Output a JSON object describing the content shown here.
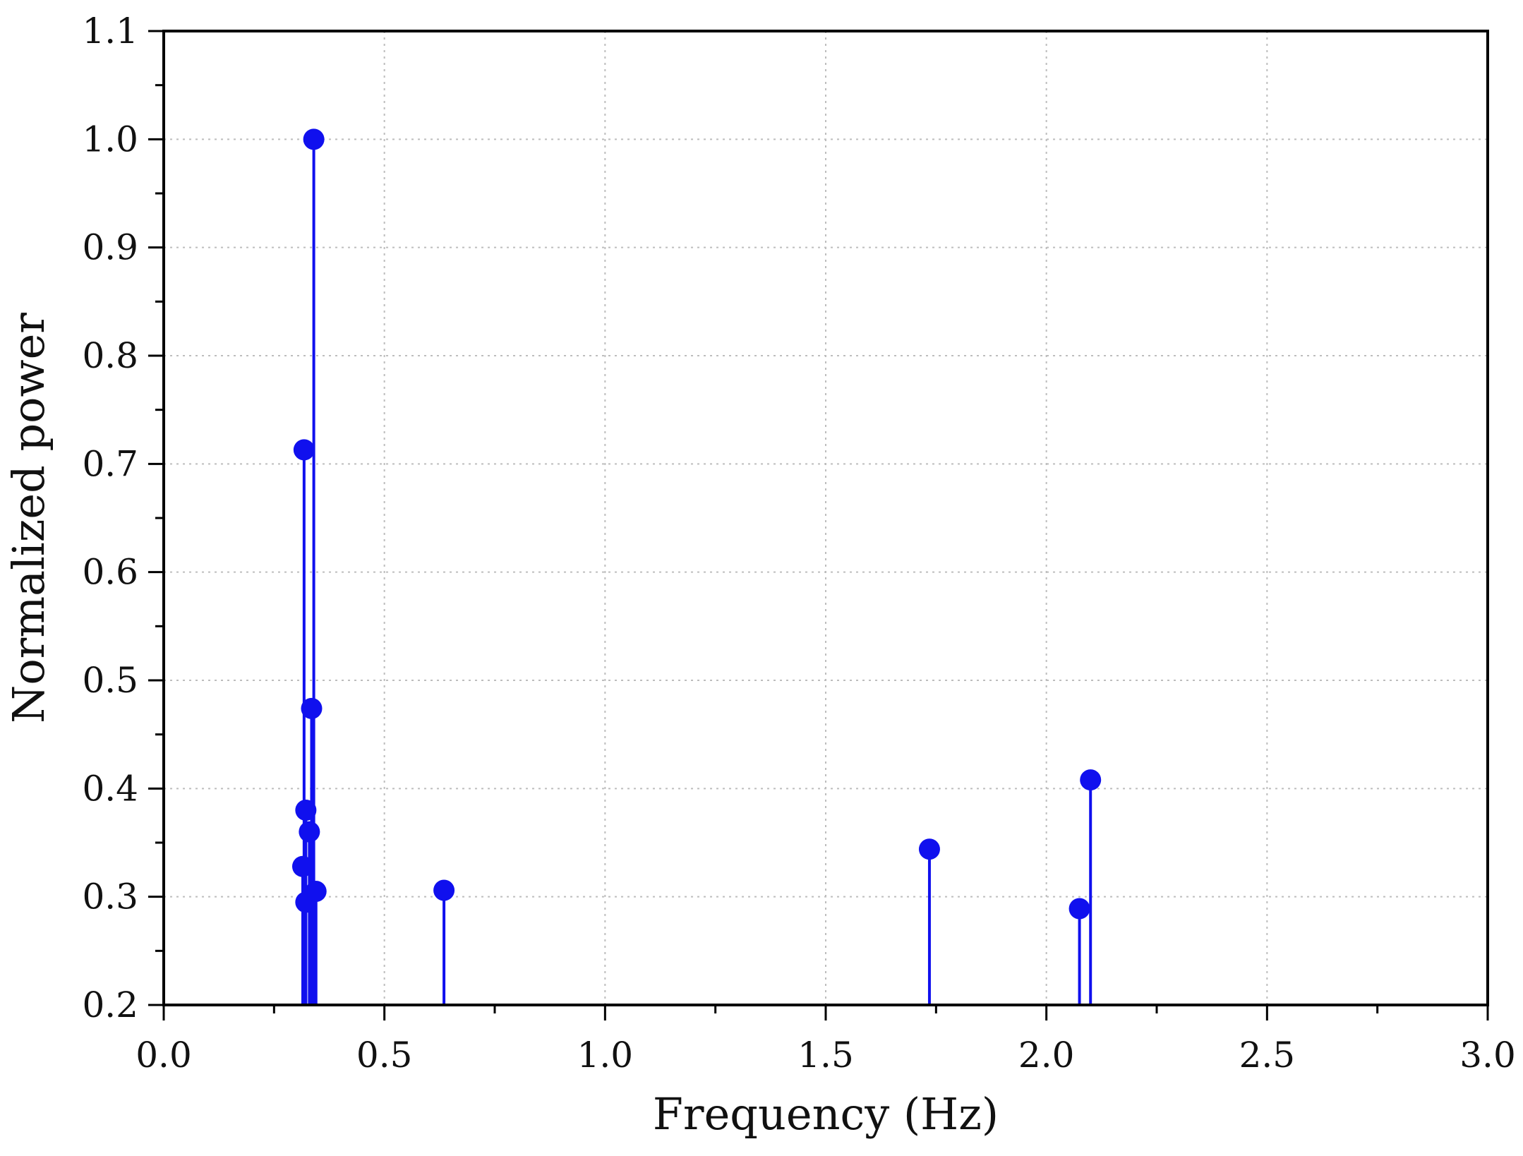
{
  "chart_data": {
    "type": "stem",
    "xlabel": "Frequency (Hz)",
    "ylabel": "Normalized power",
    "xlim": [
      0.0,
      3.0
    ],
    "ylim": [
      0.2,
      1.1
    ],
    "xticks": [
      0.0,
      0.5,
      1.0,
      1.5,
      2.0,
      2.5,
      3.0
    ],
    "xtick_labels": [
      "0.0",
      "0.5",
      "1.0",
      "1.5",
      "2.0",
      "2.5",
      "3.0"
    ],
    "yticks": [
      0.2,
      0.3,
      0.4,
      0.5,
      0.6,
      0.7,
      0.8,
      0.9,
      1.0,
      1.1
    ],
    "ytick_labels": [
      "0.2",
      "0.3",
      "0.4",
      "0.5",
      "0.6",
      "0.7",
      "0.8",
      "0.9",
      "1.0",
      "1.1"
    ],
    "grid": true,
    "baseline": 0.2,
    "color": "#1010ee",
    "points": [
      {
        "x": 0.315,
        "y": 0.328
      },
      {
        "x": 0.318,
        "y": 0.713
      },
      {
        "x": 0.322,
        "y": 0.38
      },
      {
        "x": 0.322,
        "y": 0.295
      },
      {
        "x": 0.33,
        "y": 0.36
      },
      {
        "x": 0.335,
        "y": 0.474
      },
      {
        "x": 0.34,
        "y": 1.0
      },
      {
        "x": 0.345,
        "y": 0.305
      },
      {
        "x": 0.635,
        "y": 0.306
      },
      {
        "x": 1.735,
        "y": 0.344
      },
      {
        "x": 2.075,
        "y": 0.289
      },
      {
        "x": 2.1,
        "y": 0.408
      }
    ]
  }
}
